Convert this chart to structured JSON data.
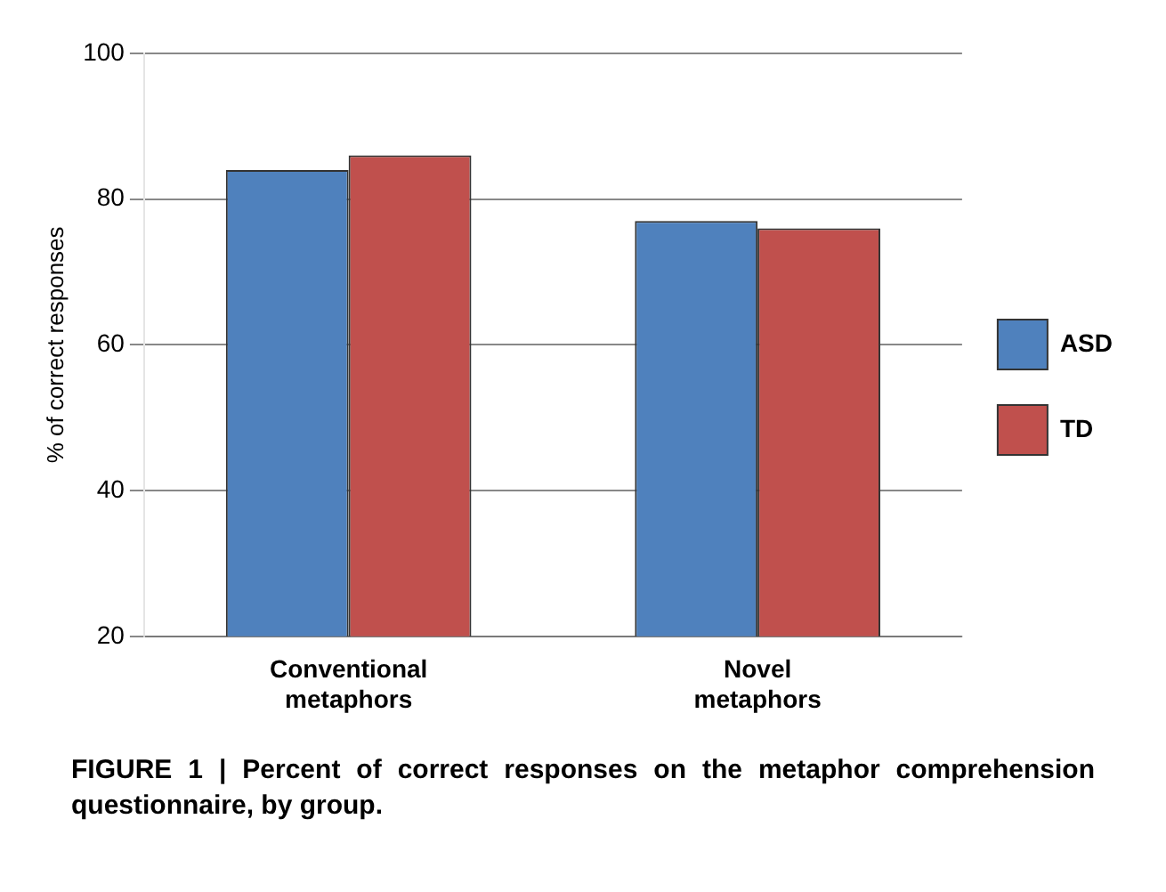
{
  "chart_data": {
    "type": "bar",
    "ylabel": "% of correct responses",
    "categories": [
      "Conventional\nmetaphors",
      "Novel\nmetaphors"
    ],
    "series": [
      {
        "name": "ASD",
        "color": "#4f81bd",
        "values": [
          84,
          77
        ]
      },
      {
        "name": "TD",
        "color": "#c0504d",
        "values": [
          86,
          76
        ]
      }
    ],
    "ylim": [
      20,
      100
    ],
    "yticks": [
      20,
      40,
      60,
      80,
      100
    ],
    "grid": "y",
    "legend": "right",
    "annotations": [
      "FIGURE 1 | Percent of correct responses on the metaphor comprehension questionnaire, by group."
    ]
  }
}
